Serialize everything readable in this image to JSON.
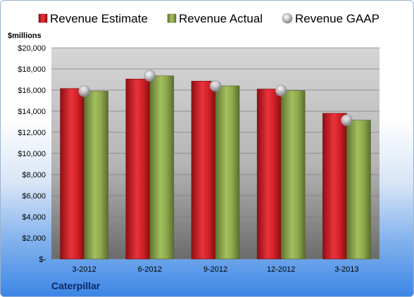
{
  "chart_data": {
    "type": "bar",
    "title": "",
    "ylabel": "$millions",
    "footer": "Caterpillar",
    "categories": [
      "3-2012",
      "6-2012",
      "9-2012",
      "12-2012",
      "3-2013"
    ],
    "series": [
      {
        "name": "Revenue Estimate",
        "kind": "bar",
        "color": "#d8232a",
        "values": [
          16150,
          17050,
          16850,
          16100,
          13800
        ]
      },
      {
        "name": "Revenue Actual",
        "kind": "bar",
        "color": "#8faa4e",
        "values": [
          15900,
          17350,
          16400,
          15950,
          13150
        ]
      },
      {
        "name": "Revenue GAAP",
        "kind": "marker",
        "color": "#b9bcc2",
        "values": [
          15900,
          17350,
          16400,
          15950,
          13150
        ]
      }
    ],
    "ylim": [
      0,
      20000
    ],
    "yticks": [
      "$-",
      "$2,000",
      "$4,000",
      "$6,000",
      "$8,000",
      "$10,000",
      "$12,000",
      "$14,000",
      "$16,000",
      "$18,000",
      "$20,000"
    ],
    "grid": true,
    "legend": "top"
  }
}
